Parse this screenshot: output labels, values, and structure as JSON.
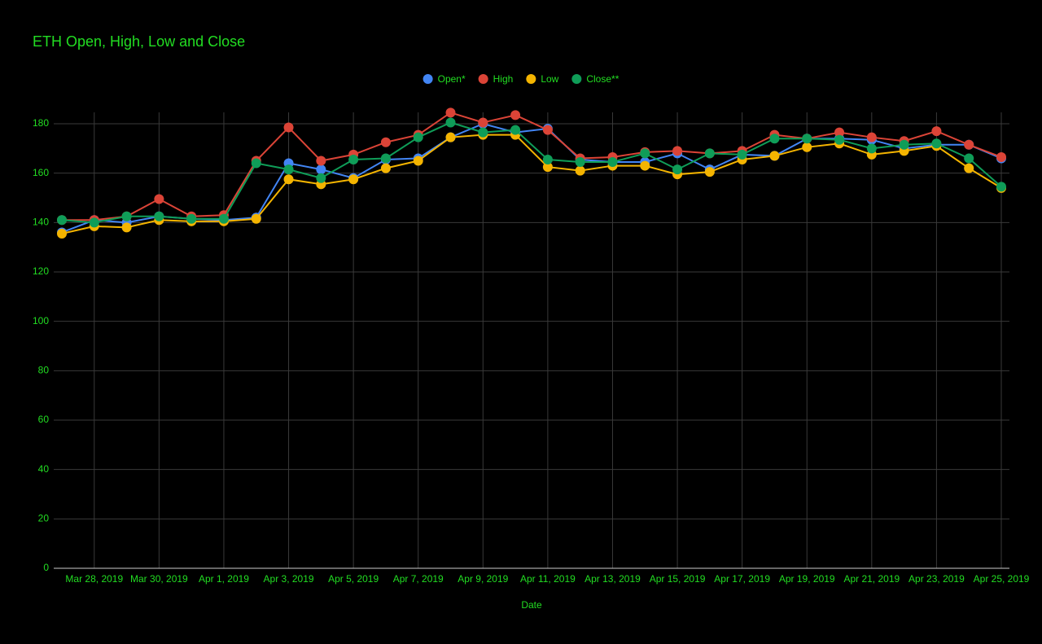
{
  "chart_data": {
    "type": "line",
    "title": "ETH Open, High, Low and Close",
    "x_label": "Date",
    "x": [
      "Mar 27, 2019",
      "Mar 28, 2019",
      "Mar 29, 2019",
      "Mar 30, 2019",
      "Mar 31, 2019",
      "Apr 1, 2019",
      "Apr 2, 2019",
      "Apr 3, 2019",
      "Apr 4, 2019",
      "Apr 5, 2019",
      "Apr 6, 2019",
      "Apr 7, 2019",
      "Apr 8, 2019",
      "Apr 9, 2019",
      "Apr 10, 2019",
      "Apr 11, 2019",
      "Apr 12, 2019",
      "Apr 13, 2019",
      "Apr 14, 2019",
      "Apr 15, 2019",
      "Apr 16, 2019",
      "Apr 17, 2019",
      "Apr 18, 2019",
      "Apr 19, 2019",
      "Apr 20, 2019",
      "Apr 21, 2019",
      "Apr 22, 2019",
      "Apr 23, 2019",
      "Apr 24, 2019",
      "Apr 25, 2019"
    ],
    "xticks": [
      "Mar 28, 2019",
      "Mar 30, 2019",
      "Apr 1, 2019",
      "Apr 3, 2019",
      "Apr 5, 2019",
      "Apr 7, 2019",
      "Apr 9, 2019",
      "Apr 11, 2019",
      "Apr 13, 2019",
      "Apr 15, 2019",
      "Apr 17, 2019",
      "Apr 19, 2019",
      "Apr 21, 2019",
      "Apr 23, 2019",
      "Apr 25, 2019"
    ],
    "ylim": [
      0,
      180
    ],
    "yticks": [
      0,
      20,
      40,
      60,
      80,
      100,
      120,
      140,
      160,
      180
    ],
    "grid": true,
    "legend": "top",
    "series": [
      {
        "name": "Open*",
        "color": "#4285f4",
        "values": [
          136,
          141,
          140,
          142.5,
          141.5,
          141,
          142,
          164,
          161.5,
          158,
          165.5,
          166,
          174.5,
          180,
          176.5,
          178,
          165.5,
          164.5,
          164.5,
          168,
          161.5,
          167.5,
          167,
          174,
          174,
          173.5,
          170,
          171.5,
          171.5,
          166
        ]
      },
      {
        "name": "High",
        "color": "#db4437",
        "values": [
          141,
          141,
          142.5,
          149.5,
          142.5,
          143,
          165,
          178.5,
          165,
          167.5,
          172.5,
          175.5,
          184.5,
          180.5,
          183.5,
          177.5,
          166,
          166.5,
          168.5,
          169,
          168,
          169,
          175.5,
          174,
          176.5,
          174.5,
          173,
          177,
          171.5,
          166.5
        ]
      },
      {
        "name": "Low",
        "color": "#f4b400",
        "values": [
          135.5,
          138.5,
          138,
          141,
          140.5,
          140.5,
          141.5,
          157.5,
          155.5,
          157.5,
          162,
          165,
          174.5,
          175.5,
          175.5,
          162.5,
          161,
          163,
          163,
          159.5,
          160.5,
          165.5,
          167,
          170.5,
          172,
          167.5,
          169,
          171,
          162,
          154
        ]
      },
      {
        "name": "Close**",
        "color": "#0f9d58",
        "values": [
          141,
          140,
          142.5,
          142.5,
          141.5,
          141.5,
          164,
          161.5,
          158,
          165.5,
          166,
          174.5,
          180.5,
          176.5,
          177.5,
          165.5,
          164.5,
          164.5,
          168,
          161.5,
          168,
          167.5,
          174,
          174,
          173.5,
          170,
          171.5,
          172,
          166,
          154.5
        ]
      }
    ]
  }
}
